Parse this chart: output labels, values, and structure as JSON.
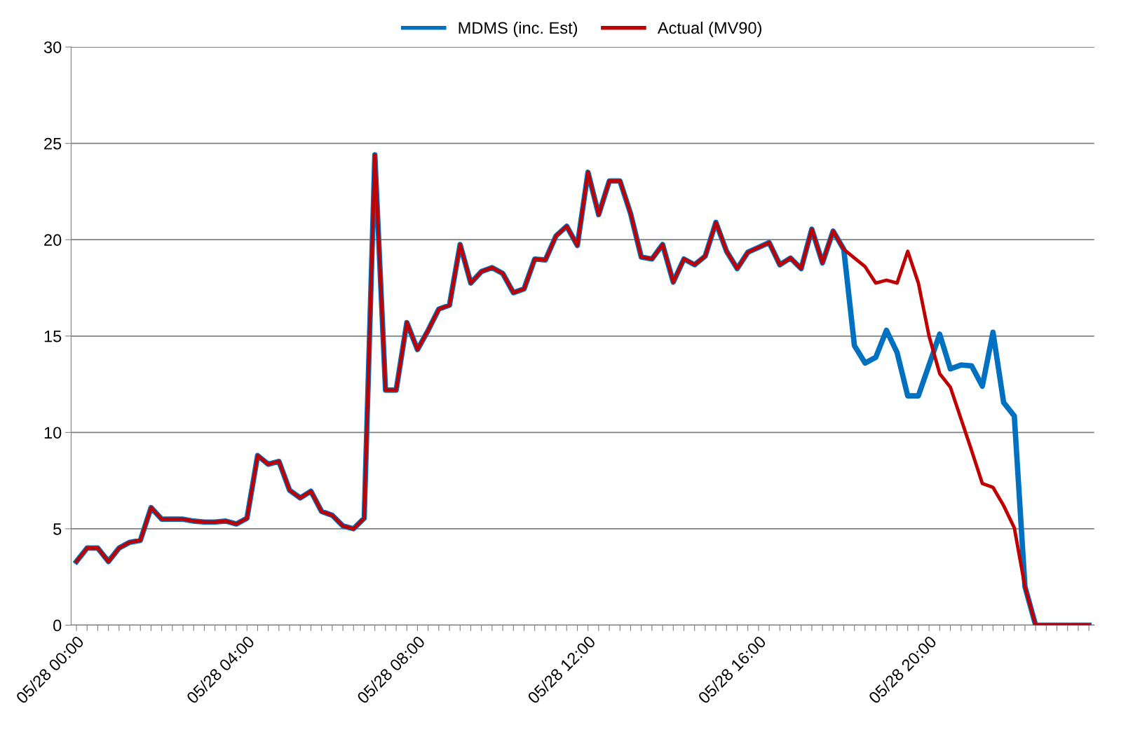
{
  "chart_data": {
    "type": "line",
    "categories": [
      "05/28 00:00",
      null,
      null,
      null,
      null,
      null,
      null,
      null,
      null,
      null,
      null,
      null,
      null,
      null,
      null,
      null,
      "05/28 04:00",
      null,
      null,
      null,
      null,
      null,
      null,
      null,
      null,
      null,
      null,
      null,
      null,
      null,
      null,
      null,
      "05/28 08:00",
      null,
      null,
      null,
      null,
      null,
      null,
      null,
      null,
      null,
      null,
      null,
      null,
      null,
      null,
      null,
      "05/28 12:00",
      null,
      null,
      null,
      null,
      null,
      null,
      null,
      null,
      null,
      null,
      null,
      null,
      null,
      null,
      null,
      "05/28 16:00",
      null,
      null,
      null,
      null,
      null,
      null,
      null,
      null,
      null,
      null,
      null,
      null,
      null,
      null,
      null,
      "05/28 20:00",
      null,
      null,
      null,
      null,
      null,
      null,
      null,
      null,
      null,
      null,
      null,
      null,
      null,
      null,
      null
    ],
    "series": [
      {
        "name": "MDMS (inc. Est)",
        "color": "#0070c0",
        "values": [
          3.3,
          4.0,
          4.0,
          3.3,
          4.0,
          4.3,
          4.4,
          6.1,
          5.5,
          5.5,
          5.5,
          5.4,
          5.35,
          5.35,
          5.4,
          5.25,
          5.55,
          8.8,
          8.35,
          8.5,
          7.0,
          6.6,
          6.95,
          5.9,
          5.7,
          5.15,
          5.0,
          5.55,
          24.4,
          12.2,
          12.2,
          15.7,
          14.3,
          15.3,
          16.4,
          16.6,
          19.75,
          17.75,
          18.35,
          18.55,
          18.25,
          17.25,
          17.45,
          19.0,
          18.95,
          20.2,
          20.7,
          19.7,
          23.5,
          21.3,
          23.05,
          23.05,
          21.35,
          19.1,
          19.0,
          19.75,
          17.8,
          19.0,
          18.7,
          19.15,
          20.9,
          19.4,
          18.5,
          19.35,
          19.6,
          19.85,
          18.7,
          19.05,
          18.5,
          20.55,
          18.8,
          20.45,
          19.5,
          14.5,
          13.6,
          13.9,
          15.3,
          14.15,
          11.9,
          11.9,
          13.5,
          15.1,
          13.3,
          13.5,
          13.45,
          12.4,
          15.2,
          11.55,
          10.85,
          2.0,
          0,
          0,
          0,
          0,
          0,
          0
        ]
      },
      {
        "name": "Actual (MV90)",
        "color": "#c00000",
        "values": [
          3.3,
          4.0,
          4.0,
          3.3,
          4.0,
          4.3,
          4.4,
          6.1,
          5.5,
          5.5,
          5.5,
          5.4,
          5.35,
          5.35,
          5.4,
          5.25,
          5.55,
          8.8,
          8.35,
          8.5,
          7.0,
          6.6,
          6.95,
          5.9,
          5.7,
          5.15,
          5.0,
          5.55,
          24.4,
          12.2,
          12.2,
          15.7,
          14.3,
          15.3,
          16.4,
          16.6,
          19.75,
          17.75,
          18.35,
          18.55,
          18.25,
          17.25,
          17.45,
          19.0,
          18.95,
          20.2,
          20.7,
          19.7,
          23.5,
          21.3,
          23.05,
          23.05,
          21.35,
          19.1,
          19.0,
          19.75,
          17.8,
          19.0,
          18.7,
          19.15,
          20.9,
          19.4,
          18.5,
          19.35,
          19.6,
          19.85,
          18.7,
          19.05,
          18.5,
          20.55,
          18.8,
          20.45,
          19.5,
          19.05,
          18.6,
          17.75,
          17.9,
          17.75,
          19.4,
          17.75,
          15.0,
          13.05,
          12.35,
          10.7,
          9.05,
          7.35,
          7.15,
          6.2,
          5.05,
          2.0,
          0,
          0,
          0,
          0,
          0,
          0
        ]
      }
    ],
    "ylim": [
      0,
      30
    ],
    "yticks": [
      0,
      5,
      10,
      15,
      20,
      25,
      30
    ],
    "grid": "y",
    "legend": "top",
    "marker": "none",
    "line_style": "solid"
  }
}
